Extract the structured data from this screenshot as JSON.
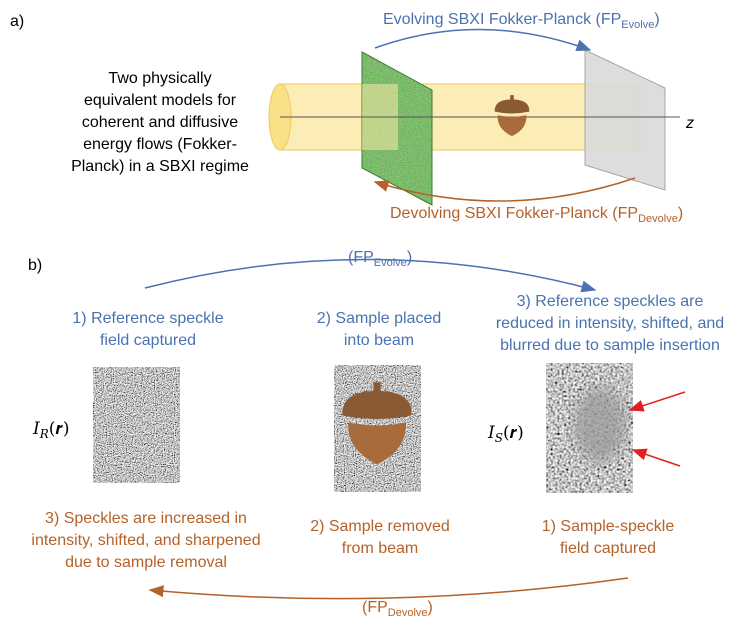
{
  "panel_a": {
    "label": "a)",
    "description_lines": [
      "Two physically",
      "equivalent models for",
      "coherent and diffusive",
      "energy flows (Fokker-",
      "Planck) in a SBXI regime"
    ],
    "axis_label": "z",
    "evolve_caption": {
      "text": "Evolving SBXI Fokker-Planck (FP",
      "subscript": "Evolve",
      "suffix": ")"
    },
    "devolve_caption": {
      "text": "Devolving SBXI Fokker-Planck (FP",
      "subscript": "Devolve",
      "suffix": ")"
    }
  },
  "panel_b": {
    "label": "b)",
    "evolve_arrow_label": {
      "text": "(FP",
      "subscript": "Evolve",
      "suffix": ")"
    },
    "devolve_arrow_label": {
      "text": "(FP",
      "subscript": "Devolve",
      "suffix": ")"
    },
    "steps": [
      {
        "top_lines": [
          "1) Reference speckle",
          "field captured"
        ],
        "bottom_lines": [
          "3) Speckles are increased in",
          "intensity, shifted, and sharpened",
          "due to sample removal"
        ]
      },
      {
        "top_lines": [
          "2) Sample placed",
          "into beam"
        ],
        "bottom_lines": [
          "2) Sample removed",
          "from beam"
        ]
      },
      {
        "top_lines": [
          "3) Reference speckles are",
          "reduced in intensity, shifted, and",
          "blurred due to sample insertion"
        ],
        "bottom_lines": [
          "1) Sample-speckle",
          "field captured"
        ]
      }
    ],
    "image_labels": [
      {
        "symbol": "I",
        "subscript": "R",
        "argument": "(𝒓)"
      },
      {
        "symbol": "I",
        "subscript": "S",
        "argument": "(𝒓)"
      }
    ]
  }
}
